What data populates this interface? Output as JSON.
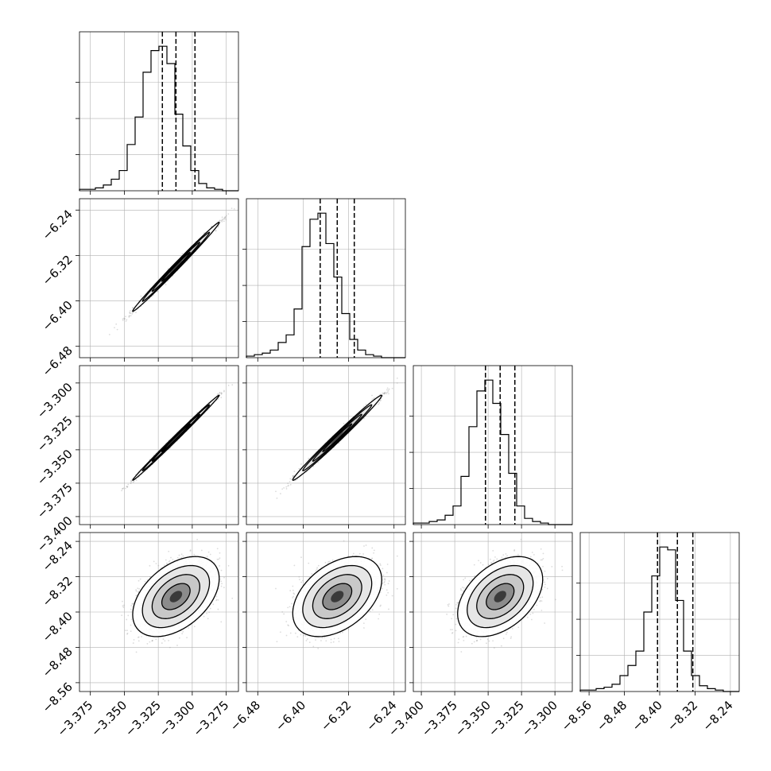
{
  "chart_data": {
    "type": "scatter",
    "title": "",
    "kind": "corner plot",
    "grid": true,
    "n_params": 4,
    "params": [
      {
        "ticks": [
          -3.375,
          -3.35,
          -3.325,
          -3.3,
          -3.275
        ],
        "ticklabels": [
          "−3.375",
          "−3.350",
          "−3.325",
          "−3.300",
          "−3.275"
        ],
        "range": [
          -3.383,
          -3.266
        ],
        "quantiles": [
          -3.322,
          -3.312,
          -3.298
        ],
        "hist": [
          0.01,
          0.01,
          0.02,
          0.04,
          0.08,
          0.14,
          0.32,
          0.51,
          0.82,
          0.97,
          1.0,
          0.88,
          0.53,
          0.31,
          0.14,
          0.05,
          0.02,
          0.01,
          0.0,
          0.0
        ]
      },
      {
        "ticks": [
          -6.48,
          -6.4,
          -6.32,
          -6.24
        ],
        "ticklabels": [
          "−6.48",
          "−6.40",
          "−6.32",
          "−6.24"
        ],
        "range": [
          -6.5,
          -6.22
        ],
        "quantiles": [
          -6.37,
          -6.34,
          -6.31
        ],
        "hist": [
          0.01,
          0.02,
          0.03,
          0.05,
          0.1,
          0.15,
          0.32,
          0.73,
          0.91,
          0.95,
          0.75,
          0.53,
          0.29,
          0.12,
          0.05,
          0.02,
          0.01,
          0.0,
          0.0,
          0.0
        ]
      },
      {
        "ticks": [
          -3.4,
          -3.375,
          -3.35,
          -3.325,
          -3.3
        ],
        "ticklabels": [
          "−3.400",
          "−3.375",
          "−3.350",
          "−3.325",
          "−3.300"
        ],
        "range": [
          -3.406,
          -3.287
        ],
        "quantiles": [
          -3.352,
          -3.341,
          -3.33
        ],
        "hist": [
          0.01,
          0.01,
          0.02,
          0.03,
          0.06,
          0.12,
          0.31,
          0.63,
          0.86,
          0.93,
          0.78,
          0.58,
          0.33,
          0.12,
          0.04,
          0.02,
          0.01,
          0.0,
          0.0,
          0.0
        ]
      },
      {
        "ticks": [
          -8.56,
          -8.48,
          -8.4,
          -8.32,
          -8.24
        ],
        "ticklabels": [
          "−8.56",
          "−8.48",
          "−8.40",
          "−8.32",
          "−8.24"
        ],
        "range": [
          -8.58,
          -8.22
        ],
        "quantiles": [
          -8.405,
          -8.36,
          -8.325
        ],
        "hist": [
          0.01,
          0.01,
          0.02,
          0.03,
          0.05,
          0.11,
          0.18,
          0.28,
          0.55,
          0.8,
          1.0,
          0.98,
          0.63,
          0.28,
          0.11,
          0.04,
          0.02,
          0.01,
          0.0,
          0.0
        ]
      }
    ],
    "pairs": [
      {
        "row": 1,
        "col": 0,
        "mean": [
          -3.312,
          -6.34
        ],
        "sd": [
          0.013,
          0.032
        ],
        "corr": 0.995
      },
      {
        "row": 2,
        "col": 0,
        "mean": [
          -3.312,
          -3.341
        ],
        "sd": [
          0.013,
          0.013
        ],
        "corr": 0.997
      },
      {
        "row": 2,
        "col": 1,
        "mean": [
          -6.34,
          -3.341
        ],
        "sd": [
          0.032,
          0.013
        ],
        "corr": 0.992
      },
      {
        "row": 3,
        "col": 0,
        "mean": [
          -3.312,
          -8.365
        ],
        "sd": [
          0.013,
          0.037
        ],
        "corr": 0.45
      },
      {
        "row": 3,
        "col": 1,
        "mean": [
          -6.34,
          -8.365
        ],
        "sd": [
          0.032,
          0.037
        ],
        "corr": 0.42
      },
      {
        "row": 3,
        "col": 2,
        "mean": [
          -3.341,
          -8.365
        ],
        "sd": [
          0.013,
          0.037
        ],
        "corr": 0.43
      }
    ]
  }
}
